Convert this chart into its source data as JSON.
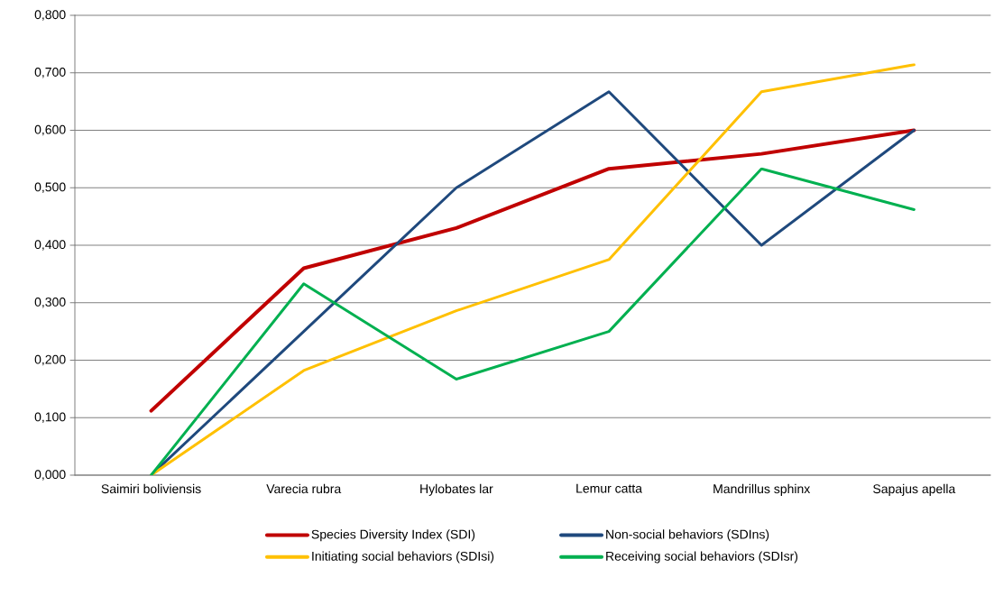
{
  "chart_data": {
    "type": "line",
    "categories": [
      "Saimiri boliviensis",
      "Varecia rubra",
      "Hylobates lar",
      "Lemur catta",
      "Mandrillus sphinx",
      "Sapajus apella"
    ],
    "series": [
      {
        "name": "Species Diversity Index (SDI)",
        "color": "#c00000",
        "values": [
          0.112,
          0.36,
          0.43,
          0.533,
          0.559,
          0.6
        ]
      },
      {
        "name": "Non-social behaviors (SDIns)",
        "color": "#1f497d",
        "values": [
          0,
          0.25,
          0.5,
          0.667,
          0.4,
          0.6
        ]
      },
      {
        "name": "Initiating social behaviors (SDIsi)",
        "color": "#ffc000",
        "values": [
          0,
          0.182,
          0.286,
          0.375,
          0.667,
          0.714
        ]
      },
      {
        "name": "Receiving social behaviors (SDIsr)",
        "color": "#00b050",
        "values": [
          0,
          0.333,
          0.167,
          0.25,
          0.533,
          0.462
        ]
      }
    ],
    "ylim": [
      0,
      0.8
    ],
    "yticks": [
      {
        "value": 0,
        "label": "0,000"
      },
      {
        "value": 0.1,
        "label": "0,100"
      },
      {
        "value": 0.2,
        "label": "0,200"
      },
      {
        "value": 0.3,
        "label": "0,300"
      },
      {
        "value": 0.4,
        "label": "0,400"
      },
      {
        "value": 0.5,
        "label": "0,500"
      },
      {
        "value": 0.6,
        "label": "0,600"
      },
      {
        "value": 0.7,
        "label": "0,700"
      },
      {
        "value": 0.8,
        "label": "0,800"
      }
    ],
    "grid": "y",
    "legend": "bottom",
    "marker": "none",
    "line_style": "solid"
  }
}
